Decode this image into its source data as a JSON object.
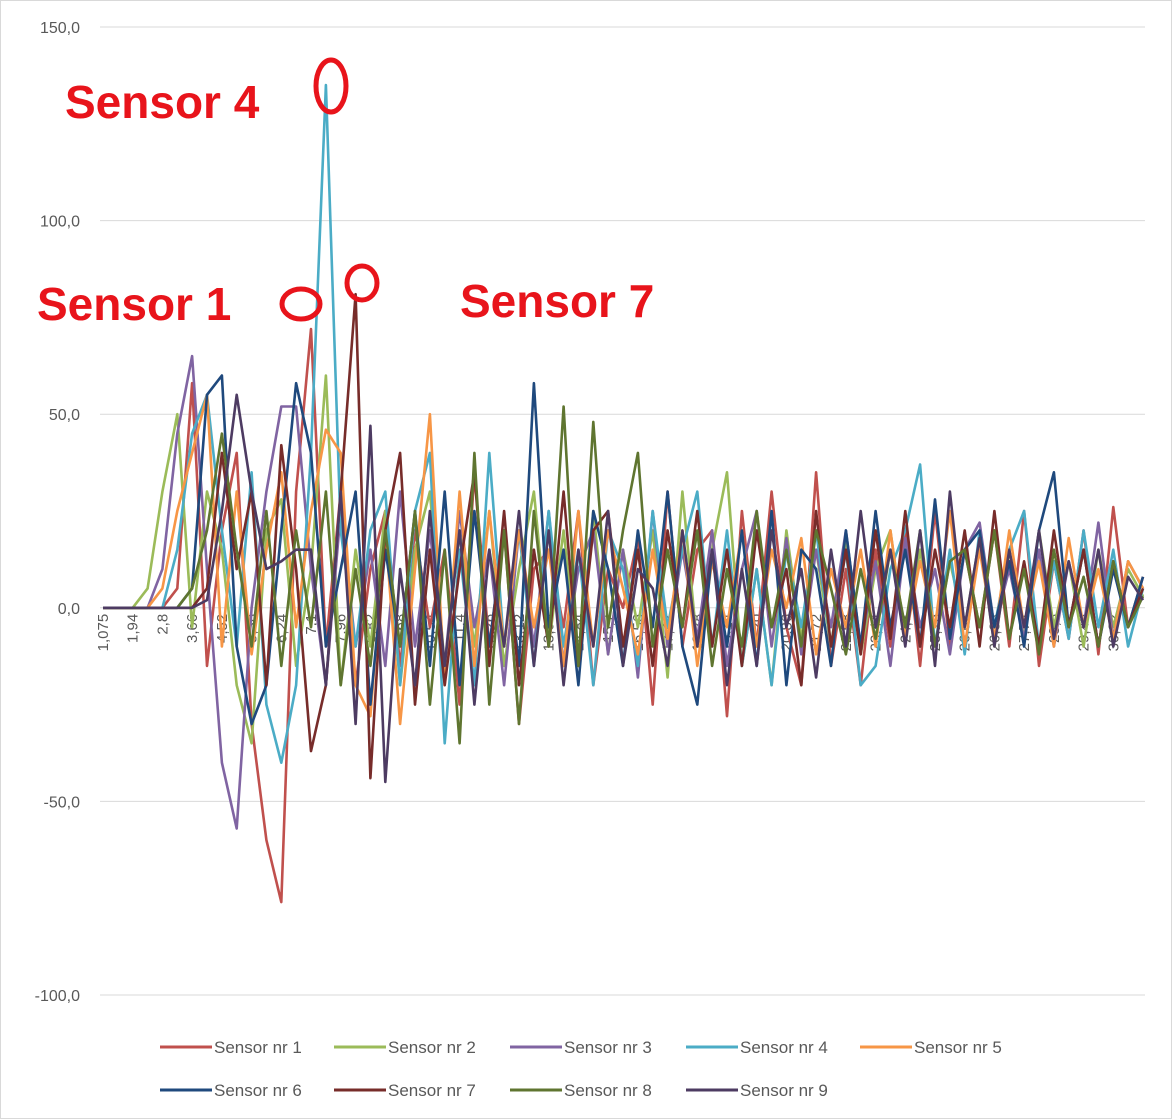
{
  "chart_data": {
    "type": "line",
    "categories": [
      "1,075",
      null,
      "1,94",
      null,
      "2,8",
      null,
      "3,66",
      null,
      "4,52",
      null,
      "5,38",
      null,
      "6,24",
      null,
      "7,1",
      null,
      "7,96",
      null,
      "8,82",
      null,
      "9,68",
      null,
      "10,54",
      null,
      "11,4",
      null,
      "12,26",
      null,
      "13,12",
      null,
      "13,98",
      null,
      "14,84",
      null,
      "15,7",
      null,
      "16,56",
      null,
      "17,42",
      null,
      "18,28",
      null,
      "19,14",
      null,
      "20",
      null,
      "20,86",
      null,
      "21,72",
      null,
      "22,58",
      null,
      "23,44",
      null,
      "24,3",
      null,
      "25,16",
      null,
      "26,02",
      null,
      "26,88",
      null,
      "27,74",
      null,
      "28,6",
      null,
      "29,46",
      null,
      "30,32",
      null,
      null
    ],
    "series": [
      {
        "name": "Sensor nr 1",
        "color": "#c0504d",
        "values": [
          0,
          0,
          0,
          0,
          0,
          5,
          58,
          -15,
          20,
          40,
          -30,
          -60,
          -76,
          30,
          72,
          -10,
          30,
          -20,
          10,
          25,
          -15,
          20,
          -5,
          15,
          -25,
          35,
          -10,
          20,
          -30,
          10,
          15,
          -5,
          25,
          -20,
          10,
          0,
          18,
          -25,
          30,
          -10,
          15,
          20,
          -28,
          25,
          -10,
          30,
          -5,
          -20,
          35,
          -15,
          10,
          -20,
          15,
          -10,
          20,
          -15,
          25,
          -10,
          15,
          -5,
          20,
          -10,
          25,
          -15,
          12,
          -8,
          20,
          -12,
          26,
          -5,
          8
        ]
      },
      {
        "name": "Sensor nr 2",
        "color": "#9bbb59",
        "values": [
          0,
          0,
          0,
          5,
          30,
          50,
          -5,
          30,
          15,
          -20,
          -35,
          20,
          28,
          -15,
          10,
          60,
          -20,
          15,
          -10,
          25,
          -20,
          15,
          30,
          -15,
          20,
          -10,
          25,
          -15,
          10,
          30,
          -10,
          20,
          -15,
          25,
          -12,
          15,
          -5,
          20,
          -18,
          30,
          -10,
          15,
          35,
          -15,
          10,
          -20,
          20,
          -8,
          15,
          -10,
          18,
          -12,
          10,
          20,
          -8,
          15,
          -10,
          12,
          -5,
          18,
          -10,
          15,
          -8,
          20,
          -5,
          12,
          -10,
          15,
          -5,
          10,
          3
        ]
      },
      {
        "name": "Sensor nr 3",
        "color": "#8064a2",
        "values": [
          0,
          0,
          0,
          0,
          10,
          45,
          65,
          10,
          -40,
          -57,
          0,
          30,
          52,
          52,
          10,
          -20,
          25,
          -10,
          15,
          -15,
          30,
          -10,
          20,
          -15,
          25,
          -5,
          15,
          -20,
          20,
          -10,
          25,
          -15,
          10,
          20,
          -12,
          15,
          -18,
          25,
          -10,
          15,
          -8,
          20,
          -15,
          10,
          25,
          -10,
          18,
          -12,
          15,
          -5,
          20,
          -10,
          12,
          -15,
          18,
          -5,
          10,
          -12,
          15,
          22,
          -5,
          10,
          -8,
          15,
          -10,
          12,
          -5,
          22,
          -8,
          12,
          5
        ]
      },
      {
        "name": "Sensor nr 4",
        "color": "#4bacc6",
        "values": [
          0,
          0,
          0,
          0,
          0,
          15,
          45,
          55,
          20,
          -10,
          35,
          -25,
          -40,
          -20,
          40,
          135,
          20,
          -10,
          20,
          30,
          -20,
          25,
          40,
          -35,
          15,
          -20,
          40,
          -10,
          20,
          -15,
          25,
          -10,
          15,
          -20,
          20,
          10,
          -15,
          25,
          -5,
          15,
          30,
          -10,
          20,
          -15,
          10,
          -20,
          15,
          -5,
          20,
          -10,
          15,
          -20,
          -15,
          10,
          20,
          37,
          -10,
          15,
          -12,
          20,
          -5,
          15,
          25,
          -10,
          12,
          -8,
          20,
          -5,
          15,
          -10,
          5
        ]
      },
      {
        "name": "Sensor nr 5",
        "color": "#f79646",
        "values": [
          0,
          0,
          0,
          0,
          5,
          25,
          40,
          55,
          -10,
          30,
          -12,
          15,
          35,
          -5,
          25,
          46,
          40,
          -20,
          -28,
          20,
          -30,
          10,
          50,
          -20,
          30,
          -15,
          25,
          -10,
          20,
          -5,
          15,
          -15,
          25,
          -10,
          20,
          5,
          -12,
          15,
          -8,
          20,
          -15,
          12,
          -5,
          20,
          -10,
          15,
          0,
          18,
          -12,
          10,
          -5,
          15,
          -10,
          20,
          -8,
          12,
          -5,
          25,
          -10,
          15,
          -8,
          20,
          -5,
          12,
          -10,
          18,
          -5,
          10,
          -8,
          12,
          5
        ]
      },
      {
        "name": "Sensor nr 6",
        "color": "#1f497d",
        "values": [
          0,
          0,
          0,
          0,
          0,
          0,
          5,
          55,
          60,
          -10,
          -30,
          -20,
          20,
          58,
          40,
          -10,
          10,
          30,
          -25,
          15,
          -10,
          25,
          -15,
          30,
          -20,
          25,
          -10,
          20,
          -15,
          58,
          -5,
          15,
          -20,
          25,
          10,
          -15,
          20,
          -5,
          30,
          -10,
          -25,
          15,
          -10,
          20,
          -15,
          25,
          -20,
          15,
          10,
          -15,
          20,
          -10,
          25,
          -5,
          15,
          -10,
          28,
          -8,
          15,
          20,
          -5,
          12,
          -10,
          20,
          35,
          -5,
          15,
          -10,
          10,
          -5,
          8
        ]
      },
      {
        "name": "Sensor nr 7",
        "color": "#772c2a",
        "values": [
          0,
          0,
          0,
          0,
          0,
          0,
          0,
          5,
          40,
          10,
          30,
          -20,
          42,
          10,
          -37,
          -20,
          30,
          81,
          -44,
          20,
          40,
          -25,
          15,
          -20,
          10,
          35,
          -15,
          25,
          -20,
          15,
          -10,
          30,
          -15,
          20,
          25,
          -10,
          15,
          -15,
          20,
          -5,
          25,
          -10,
          15,
          -15,
          20,
          -5,
          10,
          -20,
          25,
          -10,
          15,
          -12,
          20,
          -8,
          25,
          -10,
          15,
          -5,
          20,
          -10,
          25,
          -8,
          12,
          -10,
          20,
          -5,
          15,
          -10,
          12,
          -5,
          5
        ]
      },
      {
        "name": "Sensor nr 8",
        "color": "#5f7530",
        "values": [
          0,
          0,
          0,
          0,
          0,
          0,
          5,
          20,
          45,
          15,
          -10,
          25,
          -15,
          20,
          -5,
          30,
          -20,
          10,
          -15,
          20,
          -10,
          25,
          -25,
          15,
          -35,
          40,
          -25,
          20,
          -30,
          25,
          -10,
          52,
          -15,
          48,
          -5,
          20,
          40,
          -10,
          15,
          -5,
          20,
          -15,
          10,
          -10,
          25,
          -5,
          15,
          -10,
          20,
          5,
          -12,
          10,
          -8,
          15,
          -5,
          20,
          -10,
          12,
          15,
          -5,
          20,
          -8,
          10,
          -12,
          15,
          -5,
          8,
          -10,
          12,
          -5,
          3
        ]
      },
      {
        "name": "Sensor nr 9",
        "color": "#4d3b62",
        "values": [
          0,
          0,
          0,
          0,
          0,
          0,
          0,
          2,
          25,
          55,
          30,
          10,
          12,
          15,
          15,
          -20,
          30,
          -30,
          47,
          -45,
          10,
          -20,
          25,
          -15,
          20,
          -25,
          15,
          -10,
          25,
          -15,
          20,
          -20,
          15,
          -10,
          25,
          -15,
          10,
          5,
          -15,
          20,
          -10,
          15,
          -20,
          10,
          -15,
          20,
          -5,
          10,
          -18,
          15,
          -10,
          25,
          -5,
          15,
          -10,
          20,
          -15,
          30,
          -5,
          18,
          -10,
          15,
          -5,
          20,
          -8,
          12,
          -5,
          15,
          -10,
          8,
          2
        ]
      }
    ],
    "ylim": [
      -100,
      150
    ],
    "yticks": [
      {
        "value": -100,
        "label": "-100,0"
      },
      {
        "value": -50,
        "label": "-50,0"
      },
      {
        "value": 0,
        "label": "0,0"
      },
      {
        "value": 50,
        "label": "50,0"
      },
      {
        "value": 100,
        "label": "100,0"
      },
      {
        "value": 150,
        "label": "150,0"
      }
    ],
    "grid": true,
    "legend": "bottom",
    "annotations": [
      {
        "text": "Sensor 4"
      },
      {
        "text": "Sensor 1"
      },
      {
        "text": "Sensor 7"
      }
    ]
  }
}
